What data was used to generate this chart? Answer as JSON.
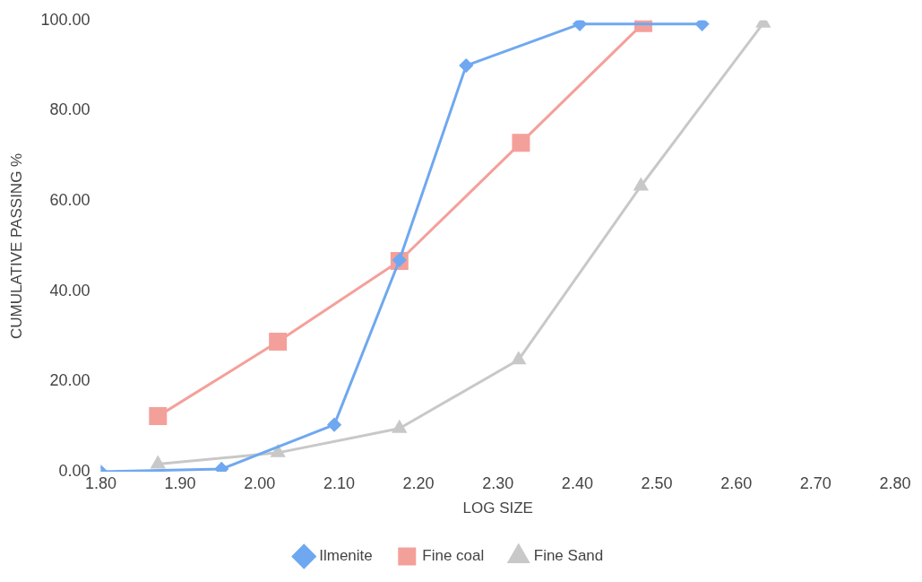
{
  "chart_data": {
    "type": "line",
    "xlabel": "LOG SIZE",
    "ylabel": "CUMULATIVE PASSING %",
    "xlim": [
      1.8,
      2.8
    ],
    "ylim": [
      0,
      100
    ],
    "xticks": [
      {
        "value": 1.8,
        "label": "1.80"
      },
      {
        "value": 1.9,
        "label": "1.90"
      },
      {
        "value": 2.0,
        "label": "2.00"
      },
      {
        "value": 2.1,
        "label": "2.10"
      },
      {
        "value": 2.2,
        "label": "2.20"
      },
      {
        "value": 2.3,
        "label": "2.30"
      },
      {
        "value": 2.4,
        "label": "2.40"
      },
      {
        "value": 2.5,
        "label": "2.50"
      },
      {
        "value": 2.6,
        "label": "2.60"
      },
      {
        "value": 2.7,
        "label": "2.70"
      },
      {
        "value": 2.8,
        "label": "2.80"
      }
    ],
    "yticks": [
      {
        "value": 0,
        "label": "0.00"
      },
      {
        "value": 20,
        "label": "20.00"
      },
      {
        "value": 40,
        "label": "40.00"
      },
      {
        "value": 60,
        "label": "60.00"
      },
      {
        "value": 80,
        "label": "80.00"
      },
      {
        "value": 100,
        "label": "100.00"
      }
    ],
    "grid": false,
    "legend": "bottom",
    "line_style": "solid",
    "series": [
      {
        "name": "Ilmenite",
        "color": "#6fa8f0",
        "marker": "diamond",
        "x": [
          1.8,
          1.952,
          2.094,
          2.176,
          2.26,
          2.403,
          2.557
        ],
        "values": [
          0,
          0.6,
          10.4,
          46.9,
          90,
          99.2,
          99.2
        ]
      },
      {
        "name": "Fine coal",
        "color": "#f4a09a",
        "marker": "square",
        "x": [
          1.872,
          2.023,
          2.176,
          2.329,
          2.483
        ],
        "values": [
          12.3,
          28.8,
          46.7,
          72.9,
          99.4
        ]
      },
      {
        "name": "Fine Sand",
        "color": "#c8c8c8",
        "marker": "triangle",
        "x": [
          1.872,
          2.023,
          2.176,
          2.326,
          2.48,
          2.634
        ],
        "values": [
          1.7,
          4.2,
          9.6,
          24.8,
          63.3,
          99.4
        ]
      }
    ]
  }
}
